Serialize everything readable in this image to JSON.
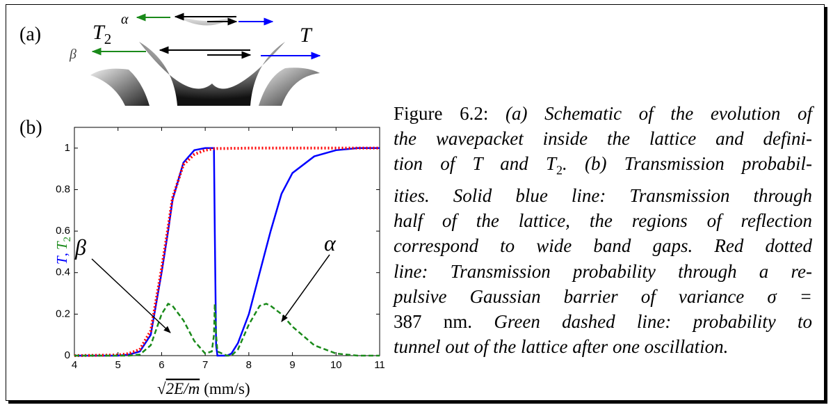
{
  "panel_a": {
    "label": "(a)",
    "t2": "T",
    "t2_sub": "2",
    "alpha": "α",
    "beta": "β",
    "t": "T"
  },
  "panel_b": {
    "label": "(b)"
  },
  "chart_data": {
    "type": "line",
    "x": [
      4,
      5,
      5.25,
      5.5,
      5.75,
      6,
      6.15,
      6.25,
      6.5,
      6.75,
      7,
      7.15,
      7.2,
      7.22,
      7.25,
      7.28,
      7.5,
      7.6,
      7.75,
      8,
      8.25,
      8.4,
      8.5,
      8.75,
      9,
      9.5,
      10,
      10.5,
      11
    ],
    "series": [
      {
        "color": "#0000ff",
        "style": "solid",
        "values": [
          0,
          0,
          0.005,
          0.02,
          0.1,
          0.4,
          0.6,
          0.75,
          0.93,
          0.99,
          1,
          1,
          1,
          0.6,
          0.05,
          0,
          0,
          0.01,
          0.06,
          0.2,
          0.4,
          0.52,
          0.6,
          0.78,
          0.88,
          0.96,
          0.99,
          1,
          1
        ]
      },
      {
        "color": "#ff0000",
        "style": "dotted",
        "values": [
          0,
          0.003,
          0.01,
          0.03,
          0.12,
          0.42,
          0.62,
          0.76,
          0.92,
          0.97,
          0.99,
          0.995,
          0.997,
          0.997,
          0.997,
          0.998,
          0.998,
          0.999,
          0.999,
          1,
          1,
          1,
          1,
          1,
          1,
          1,
          1,
          1,
          1
        ]
      },
      {
        "color": "#1a8a1a",
        "style": "dashed",
        "values": [
          0,
          0,
          0,
          0.005,
          0.05,
          0.2,
          0.25,
          0.24,
          0.17,
          0.07,
          0.01,
          0.02,
          0.1,
          0.25,
          0.1,
          0.02,
          0,
          0,
          0.03,
          0.15,
          0.24,
          0.25,
          0.24,
          0.2,
          0.14,
          0.05,
          0.01,
          0,
          0
        ]
      }
    ],
    "xlim": [
      4,
      11
    ],
    "xticks": [
      4,
      5,
      6,
      7,
      8,
      9,
      10,
      11
    ],
    "ylim": [
      0,
      1.1
    ],
    "yticks": [
      0,
      0.2,
      0.4,
      0.6,
      0.8,
      1
    ],
    "ylabel": {
      "first": "T",
      "sep": ",",
      "second": "T",
      "sub": "2"
    },
    "xlabel": {
      "root": "√",
      "radicand": "2E/m",
      "unit": "(mm/s)"
    },
    "annotations": [
      "β",
      "α"
    ]
  },
  "caption": {
    "label": "Figure 6.2:",
    "lines": [
      [
        "(a) Schematic of the evolution of"
      ],
      [
        "the wavepacket inside the lattice and defini-"
      ],
      [
        "tion of ",
        "T",
        " and ",
        "T",
        "2",
        ". (b) Transmission probabil-"
      ],
      [
        "ities. Solid blue line: Transmission through"
      ],
      [
        "half of the lattice, the regions of reflection"
      ],
      [
        "correspond to wide band gaps. Red dotted"
      ],
      [
        "line: Transmission probability through a re-"
      ],
      [
        "pulsive Gaussian barrier of variance σ ="
      ],
      [
        "387 nm.",
        " Green dashed line: probability to"
      ],
      [
        "tunnel out of the lattice after one oscillation."
      ]
    ]
  }
}
